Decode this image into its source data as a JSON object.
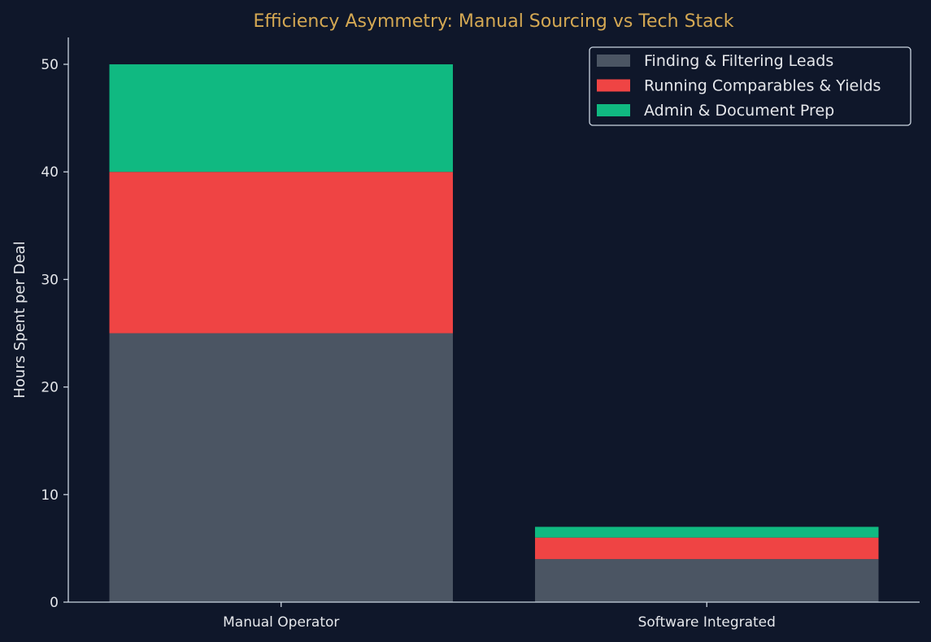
{
  "chart_data": {
    "type": "bar",
    "stacked": true,
    "title": "Efficiency Asymmetry: Manual Sourcing vs Tech Stack",
    "xlabel": "",
    "ylabel": "Hours Spent per Deal",
    "categories": [
      "Manual Operator",
      "Software Integrated"
    ],
    "ylim": [
      0,
      52.5
    ],
    "yticks": [
      "0",
      "10",
      "20",
      "30",
      "40",
      "50"
    ],
    "grid": false,
    "legend_position": "top-right",
    "series": [
      {
        "name": "Finding & Filtering Leads",
        "values": [
          25,
          4
        ],
        "color": "#4b5563"
      },
      {
        "name": "Running Comparables & Yields",
        "values": [
          15,
          2
        ],
        "color": "#ef4444"
      },
      {
        "name": "Admin & Document Prep",
        "values": [
          10,
          1
        ],
        "color": "#10b981"
      }
    ],
    "colors": {
      "background": "#0f172a",
      "title": "#d4a853",
      "text": "#e5e7eb",
      "axis": "#cbd5e1"
    }
  }
}
